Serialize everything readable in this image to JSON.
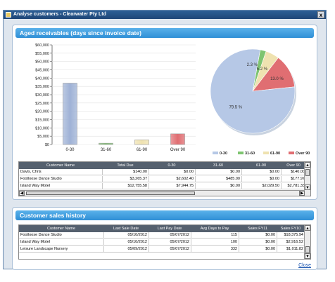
{
  "window": {
    "title": "Analyse customers - Clearwater Pty Ltd",
    "close_glyph": "x"
  },
  "aged_panel": {
    "title": "Aged receivables (days since invoice date)"
  },
  "chart_data": [
    {
      "type": "bar",
      "categories": [
        "0-30",
        "31-60",
        "61-90",
        "Over 90"
      ],
      "values": [
        36950,
        800,
        2800,
        6400
      ],
      "colors": [
        "#9fb2d6",
        "#7ec470",
        "#efe2b0",
        "#e06e72"
      ],
      "ylim": [
        0,
        60000
      ],
      "ytick_labels": [
        "$0",
        "$5,000",
        "$10,000",
        "$15,000",
        "$20,000",
        "$25,000",
        "$30,000",
        "$35,000",
        "$40,000",
        "$45,000",
        "$50,000",
        "$55,000",
        "$60,000"
      ],
      "ytick_values": [
        0,
        5000,
        10000,
        15000,
        20000,
        25000,
        30000,
        35000,
        40000,
        45000,
        50000,
        55000,
        60000
      ]
    },
    {
      "type": "pie",
      "labels": [
        "0-30",
        "31-60",
        "61-90",
        "Over 90"
      ],
      "values": [
        79.5,
        2.3,
        5.2,
        13.0
      ],
      "value_labels": [
        "79.5 %",
        "2.3 %",
        "5.2 %",
        "13.0 %"
      ],
      "colors": [
        "#b6c8e6",
        "#7ec470",
        "#efe2b0",
        "#e06e72"
      ],
      "legend": [
        "0-30",
        "31-60",
        "61-90",
        "Over 90"
      ],
      "legend_position": "bottom"
    }
  ],
  "aged_table": {
    "columns": [
      "Customer Name",
      "Total Due",
      "0-30",
      "31-60",
      "61-90",
      "Over 90"
    ],
    "rows": [
      [
        "Davis, Chris",
        "$140.00",
        "$0.00",
        "$0.00",
        "$0.00",
        "$140.00"
      ],
      [
        "Footloose Dance Studio",
        "$3,265.37",
        "$2,602.40",
        "$485.00",
        "$0.00",
        "$177.97"
      ],
      [
        "Island Way Motel",
        "$12,755.58",
        "$7,944.75",
        "$0.00",
        "$2,029.50",
        "$2,781.33"
      ]
    ]
  },
  "sales_panel": {
    "title": "Customer sales history"
  },
  "sales_table": {
    "columns": [
      "Customer Name",
      "Last Sale Date",
      "Last Pay Date",
      "Avg Days to Pay",
      "Sales FY11",
      "Sales FY10"
    ],
    "rows": [
      [
        "Footloose Dance Studio",
        "05/10/2012",
        "05/07/2012",
        "115",
        "$0.00",
        "$18,375.94"
      ],
      [
        "Island Way Motel",
        "05/10/2012",
        "05/07/2012",
        "100",
        "$0.00",
        "$2,916.52"
      ],
      [
        "Leisure Landscape Nursery",
        "05/09/2012",
        "05/07/2012",
        "332",
        "$0.00",
        "$1,011.82"
      ]
    ]
  },
  "scroll": {
    "up": "▲",
    "down": "▼",
    "left": "◀",
    "right": "▶"
  },
  "close_link": "Close"
}
